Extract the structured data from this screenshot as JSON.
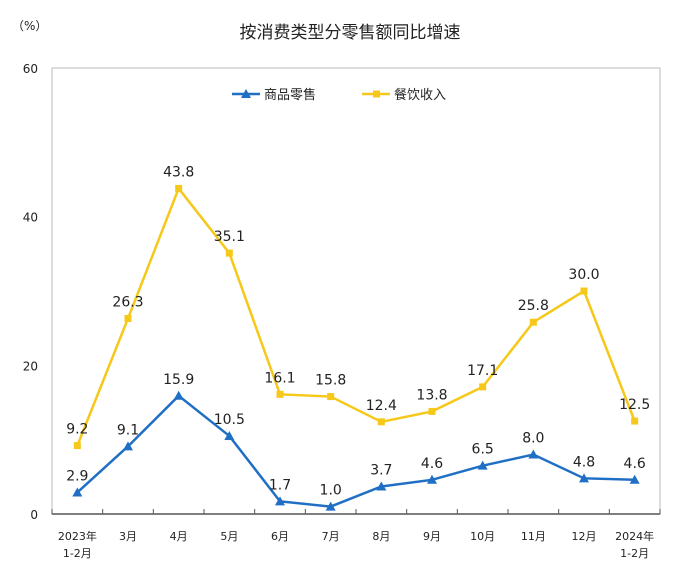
{
  "chart_data": {
    "type": "line",
    "title": "按消费类型分零售额同比增速",
    "ylabel": "（%）",
    "ylim": [
      0,
      60
    ],
    "yticks": [
      0,
      20,
      40,
      60
    ],
    "grid": false,
    "legend": "top-center",
    "categories": [
      [
        "2023年",
        "1-2月"
      ],
      [
        "3月"
      ],
      [
        "4月"
      ],
      [
        "5月"
      ],
      [
        "6月"
      ],
      [
        "7月"
      ],
      [
        "8月"
      ],
      [
        "9月"
      ],
      [
        "10月"
      ],
      [
        "11月"
      ],
      [
        "12月"
      ],
      [
        "2024年",
        "1-2月"
      ]
    ],
    "series": [
      {
        "name": "商品零售",
        "color": "#1f6fc5",
        "marker": "triangle",
        "values": [
          2.9,
          9.1,
          15.9,
          10.5,
          1.7,
          1.0,
          3.7,
          4.6,
          6.5,
          8.0,
          4.8,
          4.6
        ]
      },
      {
        "name": "餐饮收入",
        "color": "#f5c81a",
        "marker": "square",
        "values": [
          9.2,
          26.3,
          43.8,
          35.1,
          16.1,
          15.8,
          12.4,
          13.8,
          17.1,
          25.8,
          30.0,
          12.5
        ]
      }
    ]
  }
}
